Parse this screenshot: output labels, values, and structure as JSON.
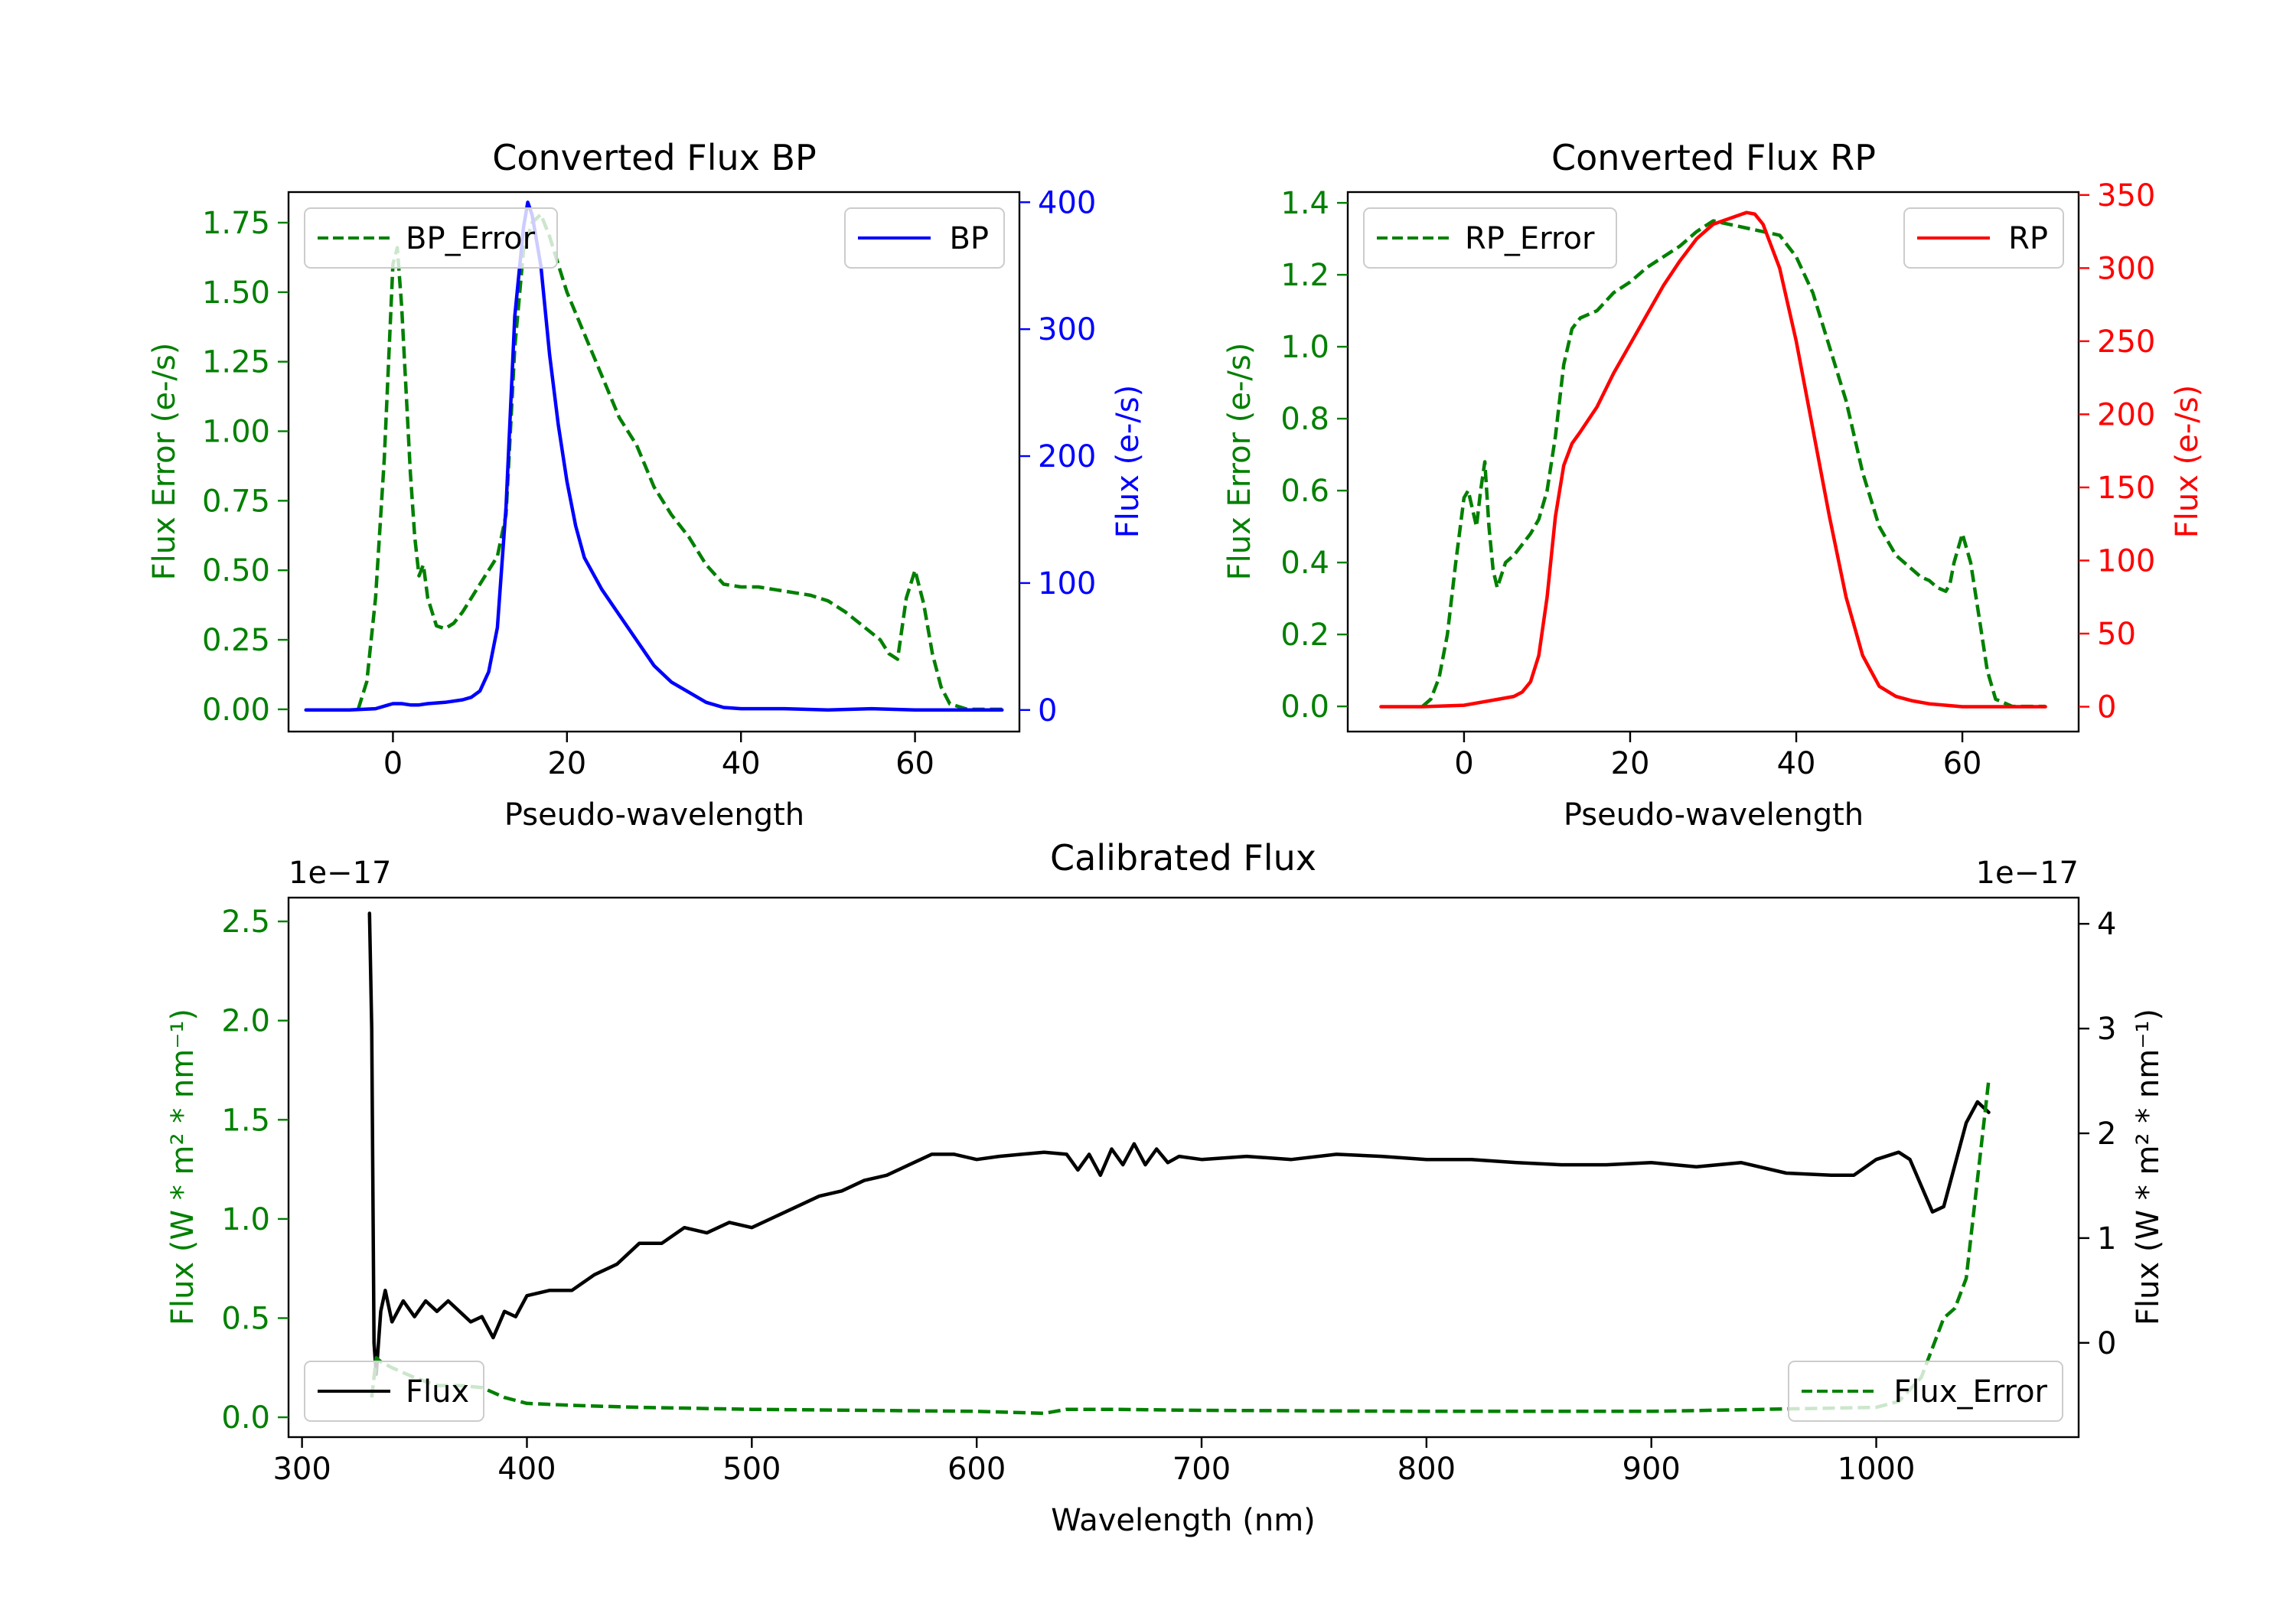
{
  "chart_data": [
    {
      "id": "bp",
      "type": "line",
      "title": "Converted Flux BP",
      "xlabel": "Pseudo-wavelength",
      "ylabel_left": "Flux Error (e-/s)",
      "ylabel_right": "Flux (e-/s)",
      "xlim": [
        -12,
        72
      ],
      "ylim_left": [
        -0.08,
        1.86
      ],
      "ylim_right": [
        -17,
        408
      ],
      "xticks": [
        0,
        20,
        40,
        60
      ],
      "yticks_left": [
        0.0,
        0.25,
        0.5,
        0.75,
        1.0,
        1.25,
        1.5,
        1.75
      ],
      "ytick_labels_left": [
        "0.00",
        "0.25",
        "0.50",
        "0.75",
        "1.00",
        "1.25",
        "1.50",
        "1.75"
      ],
      "yticks_right": [
        0,
        100,
        200,
        300,
        400
      ],
      "ytick_labels_right": [
        "0",
        "100",
        "200",
        "300",
        "400"
      ],
      "left_axis_color": "#008000",
      "right_axis_color": "#0000ff",
      "legend_left": {
        "label": "BP_Error",
        "position": "upper left"
      },
      "legend_right": {
        "label": "BP",
        "position": "upper right"
      },
      "series": [
        {
          "name": "BP_Error",
          "axis": "left",
          "color": "#008000",
          "style": "dashed",
          "x": [
            -4,
            -3,
            -2,
            -1,
            0,
            0.5,
            1,
            2,
            2.5,
            3,
            3.5,
            4,
            5,
            6,
            7,
            8,
            9,
            10,
            11,
            12,
            13,
            14,
            15,
            16,
            17,
            18,
            19,
            20,
            22,
            24,
            26,
            28,
            30,
            32,
            34,
            36,
            38,
            40,
            42,
            44,
            46,
            48,
            50,
            52,
            54,
            56,
            57,
            58,
            59,
            60,
            61,
            62,
            63,
            64,
            66,
            68,
            70
          ],
          "y": [
            0.0,
            0.1,
            0.4,
            0.9,
            1.6,
            1.66,
            1.45,
            0.85,
            0.62,
            0.48,
            0.52,
            0.4,
            0.3,
            0.29,
            0.31,
            0.35,
            0.4,
            0.45,
            0.5,
            0.55,
            0.7,
            1.3,
            1.65,
            1.75,
            1.78,
            1.7,
            1.6,
            1.5,
            1.35,
            1.2,
            1.05,
            0.95,
            0.8,
            0.7,
            0.62,
            0.52,
            0.45,
            0.44,
            0.44,
            0.43,
            0.42,
            0.41,
            0.39,
            0.35,
            0.3,
            0.25,
            0.2,
            0.18,
            0.4,
            0.5,
            0.38,
            0.2,
            0.08,
            0.02,
            0.0,
            0.0,
            0.0
          ]
        },
        {
          "name": "BP",
          "axis": "right",
          "color": "#0000ff",
          "style": "solid",
          "x": [
            -10,
            -5,
            -2,
            0,
            1,
            2,
            3,
            4,
            6,
            8,
            9,
            10,
            11,
            12,
            13,
            14,
            15,
            15.5,
            16,
            17,
            18,
            19,
            20,
            21,
            22,
            24,
            26,
            28,
            30,
            32,
            34,
            36,
            38,
            40,
            45,
            50,
            55,
            60,
            65,
            70
          ],
          "y": [
            0,
            0,
            1,
            5,
            5,
            4,
            4,
            5,
            6,
            8,
            10,
            15,
            30,
            65,
            160,
            310,
            380,
            400,
            390,
            350,
            280,
            225,
            180,
            145,
            120,
            95,
            75,
            55,
            35,
            22,
            14,
            6,
            2,
            1,
            1,
            0,
            1,
            0,
            0,
            0
          ]
        }
      ]
    },
    {
      "id": "rp",
      "type": "line",
      "title": "Converted Flux RP",
      "xlabel": "Pseudo-wavelength",
      "ylabel_left": "Flux Error (e-/s)",
      "ylabel_right": "Flux (e-/s)",
      "xlim": [
        -14,
        74
      ],
      "ylim_left": [
        -0.07,
        1.43
      ],
      "ylim_right": [
        -17,
        352
      ],
      "xticks": [
        0,
        20,
        40,
        60
      ],
      "yticks_left": [
        0.0,
        0.2,
        0.4,
        0.6,
        0.8,
        1.0,
        1.2,
        1.4
      ],
      "ytick_labels_left": [
        "0.0",
        "0.2",
        "0.4",
        "0.6",
        "0.8",
        "1.0",
        "1.2",
        "1.4"
      ],
      "yticks_right": [
        0,
        50,
        100,
        150,
        200,
        250,
        300,
        350
      ],
      "ytick_labels_right": [
        "0",
        "50",
        "100",
        "150",
        "200",
        "250",
        "300",
        "350"
      ],
      "left_axis_color": "#008000",
      "right_axis_color": "#ff0000",
      "legend_left": {
        "label": "RP_Error",
        "position": "upper left"
      },
      "legend_right": {
        "label": "RP",
        "position": "upper right"
      },
      "series": [
        {
          "name": "RP_Error",
          "axis": "left",
          "color": "#008000",
          "style": "dashed",
          "x": [
            -5,
            -4,
            -3,
            -2,
            -1,
            0,
            0.5,
            1,
            1.5,
            2,
            2.5,
            3,
            3.5,
            4,
            5,
            6,
            7,
            8,
            9,
            10,
            11,
            12,
            13,
            14,
            16,
            18,
            20,
            22,
            24,
            26,
            28,
            30,
            32,
            34,
            36,
            38,
            40,
            42,
            44,
            46,
            48,
            50,
            52,
            54,
            55,
            56,
            57,
            58,
            58.5,
            59,
            60,
            61,
            62,
            63,
            64,
            66,
            70
          ],
          "y": [
            0.0,
            0.02,
            0.08,
            0.2,
            0.4,
            0.58,
            0.6,
            0.55,
            0.5,
            0.6,
            0.68,
            0.5,
            0.38,
            0.33,
            0.4,
            0.42,
            0.45,
            0.48,
            0.52,
            0.6,
            0.75,
            0.95,
            1.05,
            1.08,
            1.1,
            1.15,
            1.18,
            1.22,
            1.25,
            1.28,
            1.32,
            1.35,
            1.34,
            1.33,
            1.32,
            1.31,
            1.25,
            1.15,
            1.0,
            0.85,
            0.65,
            0.5,
            0.42,
            0.38,
            0.36,
            0.35,
            0.33,
            0.32,
            0.34,
            0.4,
            0.48,
            0.4,
            0.25,
            0.1,
            0.02,
            0.0,
            0.0
          ]
        },
        {
          "name": "RP",
          "axis": "right",
          "color": "#ff0000",
          "style": "solid",
          "x": [
            -10,
            -5,
            0,
            2,
            4,
            6,
            7,
            8,
            9,
            10,
            11,
            12,
            13,
            14,
            16,
            18,
            20,
            22,
            24,
            26,
            28,
            30,
            32,
            34,
            35,
            36,
            38,
            40,
            42,
            44,
            46,
            48,
            50,
            52,
            54,
            56,
            58,
            60,
            62,
            65,
            70
          ],
          "y": [
            0,
            0,
            1,
            3,
            5,
            7,
            10,
            17,
            35,
            75,
            130,
            165,
            180,
            188,
            205,
            228,
            248,
            268,
            288,
            305,
            320,
            330,
            334,
            338,
            337,
            330,
            300,
            250,
            190,
            130,
            75,
            35,
            14,
            7,
            4,
            2,
            1,
            0,
            0,
            0,
            0
          ]
        }
      ]
    },
    {
      "id": "calibrated",
      "type": "line",
      "title": "Calibrated Flux",
      "xlabel": "Wavelength (nm)",
      "ylabel_left": "Flux (W * m² * nm⁻¹)",
      "ylabel_right": "Flux (W * m² * nm⁻¹)",
      "offset_left": "1e−17",
      "offset_right": "1e−17",
      "xlim": [
        294,
        1090
      ],
      "ylim_left": [
        -0.1,
        2.62
      ],
      "ylim_right": [
        -0.9,
        4.25
      ],
      "xticks": [
        300,
        400,
        500,
        600,
        700,
        800,
        900,
        1000
      ],
      "yticks_left": [
        0.0,
        0.5,
        1.0,
        1.5,
        2.0,
        2.5
      ],
      "ytick_labels_left": [
        "0.0",
        "0.5",
        "1.0",
        "1.5",
        "2.0",
        "2.5"
      ],
      "yticks_right": [
        0,
        1,
        2,
        3,
        4
      ],
      "ytick_labels_right": [
        "0",
        "1",
        "2",
        "3",
        "4"
      ],
      "left_axis_color": "#008000",
      "right_axis_color": "#000000",
      "legend_left": {
        "label": "Flux",
        "position": "lower left"
      },
      "legend_right": {
        "label": "Flux_Error",
        "position": "lower right"
      },
      "series": [
        {
          "name": "Flux",
          "axis": "right",
          "color": "#000000",
          "style": "solid",
          "x": [
            330,
            331,
            332,
            333,
            335,
            337,
            340,
            345,
            350,
            355,
            360,
            365,
            370,
            375,
            380,
            385,
            390,
            395,
            400,
            410,
            420,
            430,
            440,
            450,
            460,
            470,
            480,
            490,
            500,
            510,
            520,
            530,
            540,
            550,
            560,
            570,
            580,
            590,
            600,
            610,
            620,
            630,
            640,
            645,
            650,
            655,
            660,
            665,
            670,
            675,
            680,
            685,
            690,
            700,
            720,
            740,
            760,
            780,
            800,
            820,
            840,
            860,
            880,
            900,
            920,
            940,
            960,
            980,
            990,
            1000,
            1010,
            1015,
            1020,
            1025,
            1030,
            1035,
            1040,
            1045,
            1050
          ],
          "y": [
            4.1,
            3.0,
            0.0,
            -0.3,
            0.3,
            0.5,
            0.2,
            0.4,
            0.25,
            0.4,
            0.3,
            0.4,
            0.3,
            0.2,
            0.25,
            0.05,
            0.3,
            0.25,
            0.45,
            0.5,
            0.5,
            0.65,
            0.75,
            0.95,
            0.95,
            1.1,
            1.05,
            1.15,
            1.1,
            1.2,
            1.3,
            1.4,
            1.45,
            1.55,
            1.6,
            1.7,
            1.8,
            1.8,
            1.75,
            1.78,
            1.8,
            1.82,
            1.8,
            1.65,
            1.8,
            1.6,
            1.85,
            1.7,
            1.9,
            1.7,
            1.85,
            1.72,
            1.78,
            1.75,
            1.78,
            1.75,
            1.8,
            1.78,
            1.75,
            1.75,
            1.72,
            1.7,
            1.7,
            1.72,
            1.68,
            1.72,
            1.62,
            1.6,
            1.6,
            1.75,
            1.82,
            1.75,
            1.5,
            1.25,
            1.3,
            1.7,
            2.1,
            2.3,
            2.2
          ]
        },
        {
          "name": "Flux_Error",
          "axis": "left",
          "color": "#008000",
          "style": "dashed",
          "x": [
            331,
            333,
            335,
            340,
            350,
            360,
            370,
            380,
            390,
            400,
            420,
            450,
            500,
            550,
            600,
            630,
            640,
            660,
            700,
            800,
            900,
            950,
            1000,
            1010,
            1020,
            1025,
            1030,
            1035,
            1040,
            1045,
            1050
          ],
          "y": [
            0.1,
            0.3,
            0.28,
            0.25,
            0.2,
            0.16,
            0.16,
            0.15,
            0.1,
            0.07,
            0.06,
            0.05,
            0.04,
            0.035,
            0.03,
            0.02,
            0.04,
            0.04,
            0.035,
            0.03,
            0.03,
            0.04,
            0.05,
            0.08,
            0.2,
            0.35,
            0.5,
            0.55,
            0.7,
            1.2,
            1.7
          ]
        }
      ]
    }
  ]
}
